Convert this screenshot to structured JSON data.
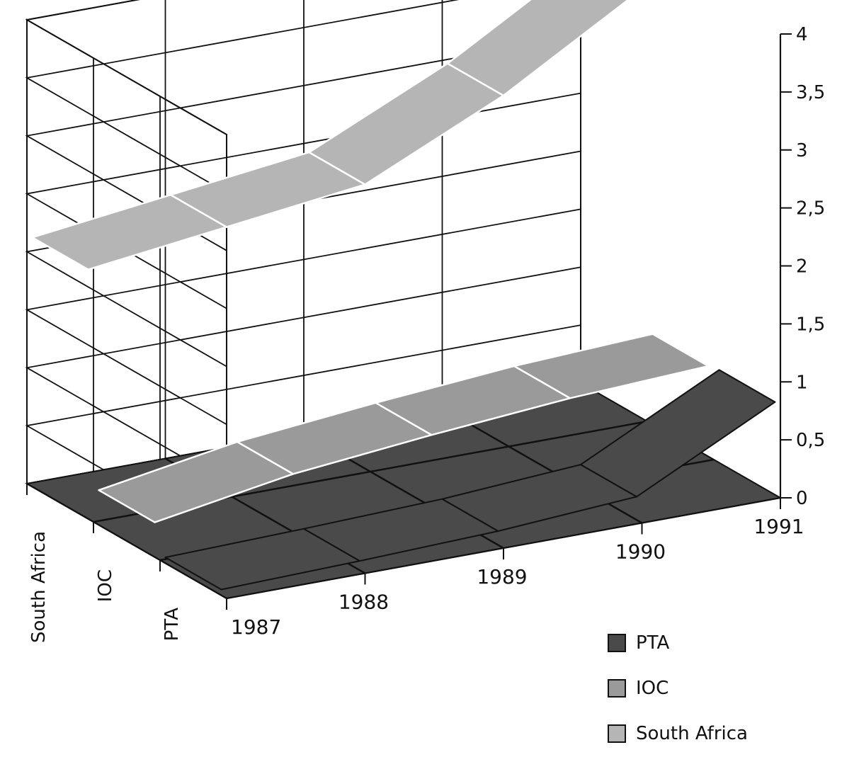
{
  "chart_data": {
    "type": "area",
    "view": "3d-ribbon",
    "title": "",
    "xlabel": "",
    "ylabel": "",
    "x": [
      "1987",
      "1988",
      "1989",
      "1990",
      "1991"
    ],
    "ytick_labels": [
      "0",
      "0,5",
      "1",
      "1,5",
      "2",
      "2,5",
      "3",
      "3,5",
      "4"
    ],
    "ylim": [
      0,
      4
    ],
    "depth_labels": [
      "South Africa",
      "IOC",
      "PTA"
    ],
    "series": [
      {
        "name": "PTA",
        "values": [
          0.05,
          0.08,
          0.12,
          0.2,
          0.8
        ],
        "color": "#4a4a4a"
      },
      {
        "name": "IOC",
        "values": [
          0.3,
          0.5,
          0.62,
          0.72,
          0.78
        ],
        "color": "#9a9a9a"
      },
      {
        "name": "South Africa",
        "values": [
          2.15,
          2.3,
          2.45,
          3.0,
          3.7
        ],
        "color": "#b5b5b5"
      }
    ],
    "grid": true,
    "legend_position": "bottom-right"
  }
}
